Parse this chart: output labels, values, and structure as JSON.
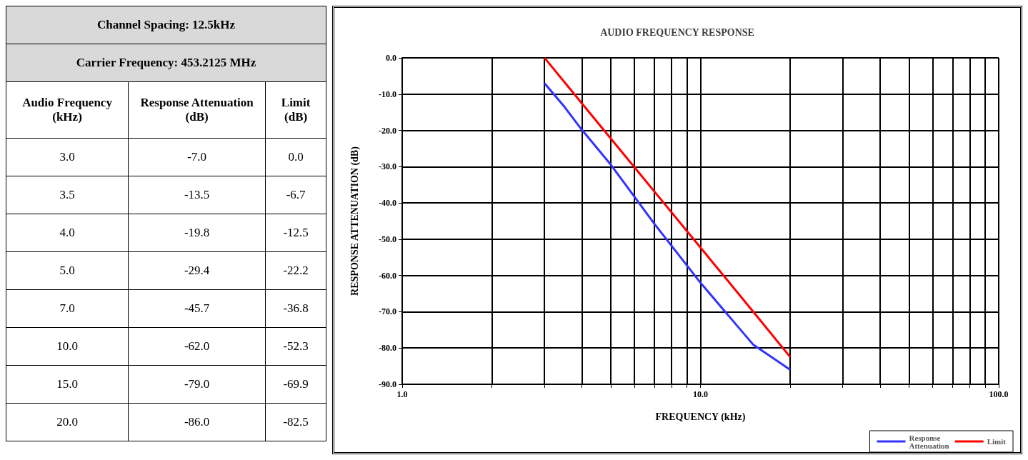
{
  "chart_data": [
    {
      "type": "other",
      "annotations": [
        "Channel Spacing: 12.5kHz",
        "Carrier Frequency: 453.2125 MHz",
        "Audio Frequency (kHz)",
        "Response Attenuation (dB)",
        "Limit (dB)",
        "3.0",
        "-7.0",
        "0.0",
        "3.5",
        "-13.5",
        "-6.7",
        "4.0",
        "-19.8",
        "-12.5",
        "5.0",
        "-29.4",
        "-22.2",
        "7.0",
        "-45.7",
        "-36.8",
        "10.0",
        "-62.0",
        "-52.3",
        "15.0",
        "-79.0",
        "-69.9",
        "20.0",
        "-86.0",
        "-82.5"
      ]
    },
    {
      "type": "line",
      "title": "AUDIO FREQUENCY RESPONSE",
      "xlabel": "FREQUENCY (kHz)",
      "ylabel": "RESPONSE ATTENUATION (dB)",
      "x": [
        3,
        3.5,
        4,
        5,
        7,
        10,
        15,
        20
      ],
      "series": [
        {
          "name": "Response Attenuation",
          "color": "#3333ff",
          "values": [
            -7,
            -13.5,
            -19.8,
            -29.4,
            -45.7,
            -62,
            -79,
            -86
          ]
        },
        {
          "name": "Limit",
          "color": "#ff0000",
          "values": [
            0,
            -6.7,
            -12.5,
            -22.2,
            -36.8,
            -52.3,
            -69.9,
            -82.5
          ]
        }
      ],
      "log": "x",
      "xlim": [
        1,
        100
      ],
      "xticks": [
        {
          "value": 1,
          "label": "1.0"
        },
        {
          "value": 2,
          "label": null
        },
        {
          "value": 3,
          "label": null
        },
        {
          "value": 4,
          "label": null
        },
        {
          "value": 5,
          "label": null
        },
        {
          "value": 6,
          "label": null
        },
        {
          "value": 7,
          "label": null
        },
        {
          "value": 8,
          "label": null
        },
        {
          "value": 9,
          "label": null
        },
        {
          "value": 10,
          "label": "10.0"
        },
        {
          "value": 20,
          "label": null
        },
        {
          "value": 30,
          "label": null
        },
        {
          "value": 40,
          "label": null
        },
        {
          "value": 50,
          "label": null
        },
        {
          "value": 60,
          "label": null
        },
        {
          "value": 70,
          "label": null
        },
        {
          "value": 80,
          "label": null
        },
        {
          "value": 90,
          "label": null
        },
        {
          "value": 100,
          "label": "100.0"
        }
      ],
      "ylim": [
        -90,
        0
      ],
      "yticks": [
        {
          "value": 0,
          "label": "0.0"
        },
        {
          "value": -10,
          "label": "-10.0"
        },
        {
          "value": -20,
          "label": "-20.0"
        },
        {
          "value": -30,
          "label": "-30.0"
        },
        {
          "value": -40,
          "label": "-40.0"
        },
        {
          "value": -50,
          "label": "-50.0"
        },
        {
          "value": -60,
          "label": "-60.0"
        },
        {
          "value": -70,
          "label": "-70.0"
        },
        {
          "value": -80,
          "label": "-80.0"
        },
        {
          "value": -90,
          "label": "-90.0"
        }
      ],
      "grid": true,
      "legend": "bottom right",
      "marker": "none",
      "line_style": "solid"
    }
  ]
}
